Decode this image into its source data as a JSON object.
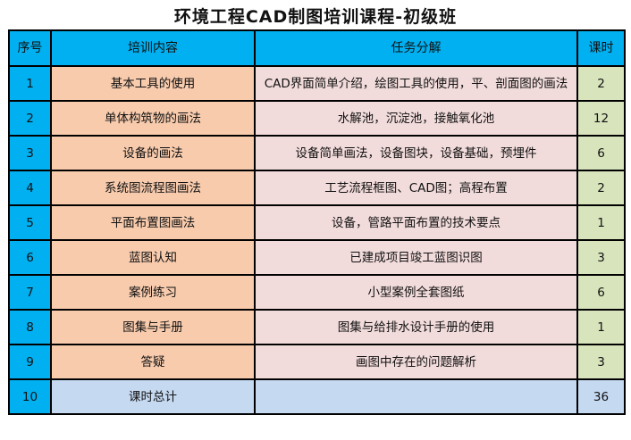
{
  "title": "环境工程CAD制图培训课程-初级班",
  "headers": [
    "序号",
    "培训内容",
    "任务分解",
    "课时"
  ],
  "rows": [
    {
      "no": "1",
      "content": "基本工具的使用",
      "tasks": "CAD界面简单介绍，绘图工具的使用，平、剖面图的画法",
      "hours": "2"
    },
    {
      "no": "2",
      "content": "单体构筑物的画法",
      "tasks": "水解池，沉淀池，接触氧化池",
      "hours": "12"
    },
    {
      "no": "3",
      "content": "设备的画法",
      "tasks": "设备简单画法，设备图块，设备基础，预埋件",
      "hours": "6"
    },
    {
      "no": "4",
      "content": "系统图流程图画法",
      "tasks": "工艺流程框图、CAD图；高程布置",
      "hours": "2"
    },
    {
      "no": "5",
      "content": "平面布置图画法",
      "tasks": "设备，管路平面布置的技术要点",
      "hours": "1"
    },
    {
      "no": "6",
      "content": "蓝图认知",
      "tasks": "已建成项目竣工蓝图识图",
      "hours": "3"
    },
    {
      "no": "7",
      "content": "案例练习",
      "tasks": "小型案例全套图纸",
      "hours": "6"
    },
    {
      "no": "8",
      "content": "图集与手册",
      "tasks": "图集与给排水设计手册的使用",
      "hours": "1"
    },
    {
      "no": "9",
      "content": "答疑",
      "tasks": "画图中存在的问题解析",
      "hours": "3"
    },
    {
      "no": "10",
      "content": "课时总计",
      "tasks": "",
      "hours": "36"
    }
  ],
  "colors": {
    "header": "#00b0f0",
    "content": "#f8cbad",
    "tasks": "#f2dcdb",
    "hours": "#d8e4bc",
    "total": "#c5d9f1"
  }
}
